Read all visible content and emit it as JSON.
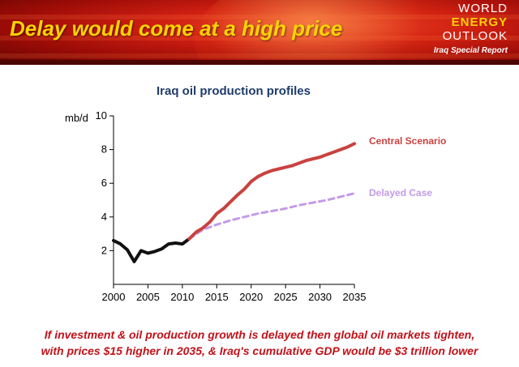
{
  "header": {
    "title": "Delay would come at a high price",
    "logo": {
      "line1": "WORLD",
      "line2": "ENERGY",
      "line3": "OUTLOOK",
      "subtitle": "Iraq Special Report"
    }
  },
  "colors": {
    "banner": "#c0150c",
    "title_yellow": "#ffd400",
    "central": "#c9423f",
    "delayed": "#c39be8",
    "history": "#111111",
    "caption": "#c0121a"
  },
  "chart_data": {
    "type": "line",
    "title": "Iraq oil production profiles",
    "ylabel": "mb/d",
    "xlabel": "",
    "xlim": [
      2000,
      2035
    ],
    "ylim": [
      0,
      10
    ],
    "x_ticks": [
      2000,
      2005,
      2010,
      2015,
      2020,
      2025,
      2030,
      2035
    ],
    "y_ticks": [
      2,
      4,
      6,
      8,
      10
    ],
    "grid": false,
    "series": [
      {
        "name": "Historical",
        "label": "",
        "style": "solid",
        "color": "#111111",
        "points": [
          [
            2000,
            2.6
          ],
          [
            2001,
            2.4
          ],
          [
            2002,
            2.05
          ],
          [
            2003,
            1.35
          ],
          [
            2004,
            2.0
          ],
          [
            2005,
            1.85
          ],
          [
            2006,
            1.95
          ],
          [
            2007,
            2.1
          ],
          [
            2008,
            2.4
          ],
          [
            2009,
            2.45
          ],
          [
            2010,
            2.4
          ],
          [
            2011,
            2.7
          ]
        ]
      },
      {
        "name": "Central Scenario",
        "label": "Central Scenario",
        "style": "solid",
        "color": "#c9423f",
        "points": [
          [
            2011,
            2.7
          ],
          [
            2012,
            3.1
          ],
          [
            2013,
            3.35
          ],
          [
            2014,
            3.7
          ],
          [
            2015,
            4.2
          ],
          [
            2016,
            4.5
          ],
          [
            2017,
            4.9
          ],
          [
            2018,
            5.3
          ],
          [
            2019,
            5.65
          ],
          [
            2020,
            6.1
          ],
          [
            2021,
            6.4
          ],
          [
            2022,
            6.6
          ],
          [
            2023,
            6.75
          ],
          [
            2024,
            6.85
          ],
          [
            2025,
            6.95
          ],
          [
            2026,
            7.05
          ],
          [
            2027,
            7.2
          ],
          [
            2028,
            7.35
          ],
          [
            2029,
            7.45
          ],
          [
            2030,
            7.55
          ],
          [
            2031,
            7.7
          ],
          [
            2032,
            7.85
          ],
          [
            2033,
            8.0
          ],
          [
            2034,
            8.15
          ],
          [
            2035,
            8.35
          ]
        ]
      },
      {
        "name": "Delayed Case",
        "label": "Delayed Case",
        "style": "dashed",
        "color": "#c39be8",
        "points": [
          [
            2011,
            2.7
          ],
          [
            2013,
            3.25
          ],
          [
            2015,
            3.55
          ],
          [
            2017,
            3.8
          ],
          [
            2019,
            4.0
          ],
          [
            2021,
            4.2
          ],
          [
            2023,
            4.35
          ],
          [
            2025,
            4.5
          ],
          [
            2027,
            4.7
          ],
          [
            2029,
            4.85
          ],
          [
            2031,
            5.0
          ],
          [
            2033,
            5.2
          ],
          [
            2035,
            5.4
          ]
        ]
      }
    ]
  },
  "caption": {
    "line1": "If investment & oil production growth is delayed then global oil markets tighten,",
    "line2": "with prices $15 higher in 2035, & Iraq's cumulative GDP would be $3 trillion lower"
  }
}
